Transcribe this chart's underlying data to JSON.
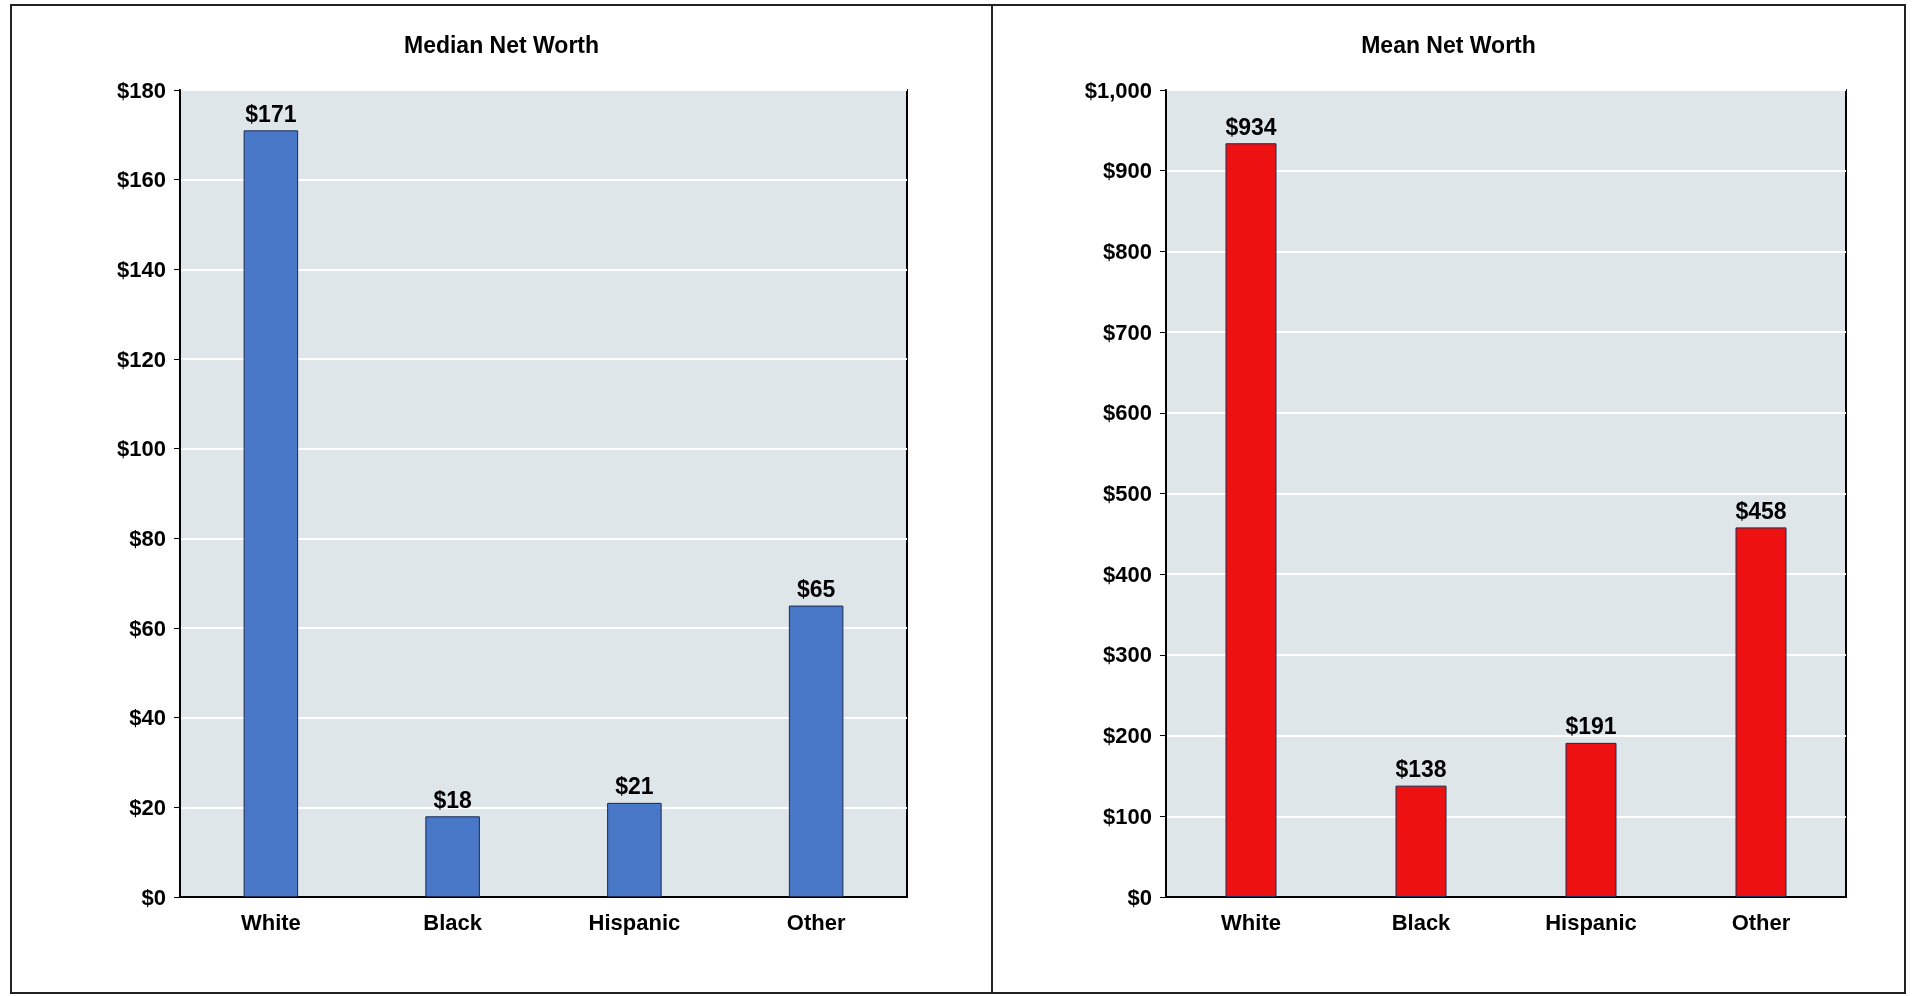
{
  "chart_data": [
    {
      "type": "bar",
      "title": "Median Net Worth",
      "categories": [
        "White",
        "Black",
        "Hispanic",
        "Other"
      ],
      "values": [
        171,
        18,
        21,
        65
      ],
      "color": "#4a78c8",
      "value_labels": [
        "$171",
        "$18",
        "$21",
        "$65"
      ],
      "ylim": [
        0,
        180
      ],
      "yticks": [
        {
          "value": 0,
          "label": "$0"
        },
        {
          "value": 20,
          "label": "$20"
        },
        {
          "value": 40,
          "label": "$40"
        },
        {
          "value": 60,
          "label": "$60"
        },
        {
          "value": 80,
          "label": "$80"
        },
        {
          "value": 100,
          "label": "$100"
        },
        {
          "value": 120,
          "label": "$120"
        },
        {
          "value": 140,
          "label": "$140"
        },
        {
          "value": 160,
          "label": "$160"
        },
        {
          "value": 180,
          "label": "$180"
        }
      ],
      "grid": "y"
    },
    {
      "type": "bar",
      "title": "Mean Net Worth",
      "categories": [
        "White",
        "Black",
        "Hispanic",
        "Other"
      ],
      "values": [
        934,
        138,
        191,
        458
      ],
      "color": "#ee1111",
      "value_labels": [
        "$934",
        "$138",
        "$191",
        "$458"
      ],
      "ylim": [
        0,
        1000
      ],
      "yticks": [
        {
          "value": 0,
          "label": "$0"
        },
        {
          "value": 100,
          "label": "$100"
        },
        {
          "value": 200,
          "label": "$200"
        },
        {
          "value": 300,
          "label": "$300"
        },
        {
          "value": 400,
          "label": "$400"
        },
        {
          "value": 500,
          "label": "$500"
        },
        {
          "value": 600,
          "label": "$600"
        },
        {
          "value": 700,
          "label": "$700"
        },
        {
          "value": 800,
          "label": "$800"
        },
        {
          "value": 900,
          "label": "$900"
        },
        {
          "value": 1000,
          "label": "$1,000"
        }
      ],
      "grid": "y"
    }
  ]
}
